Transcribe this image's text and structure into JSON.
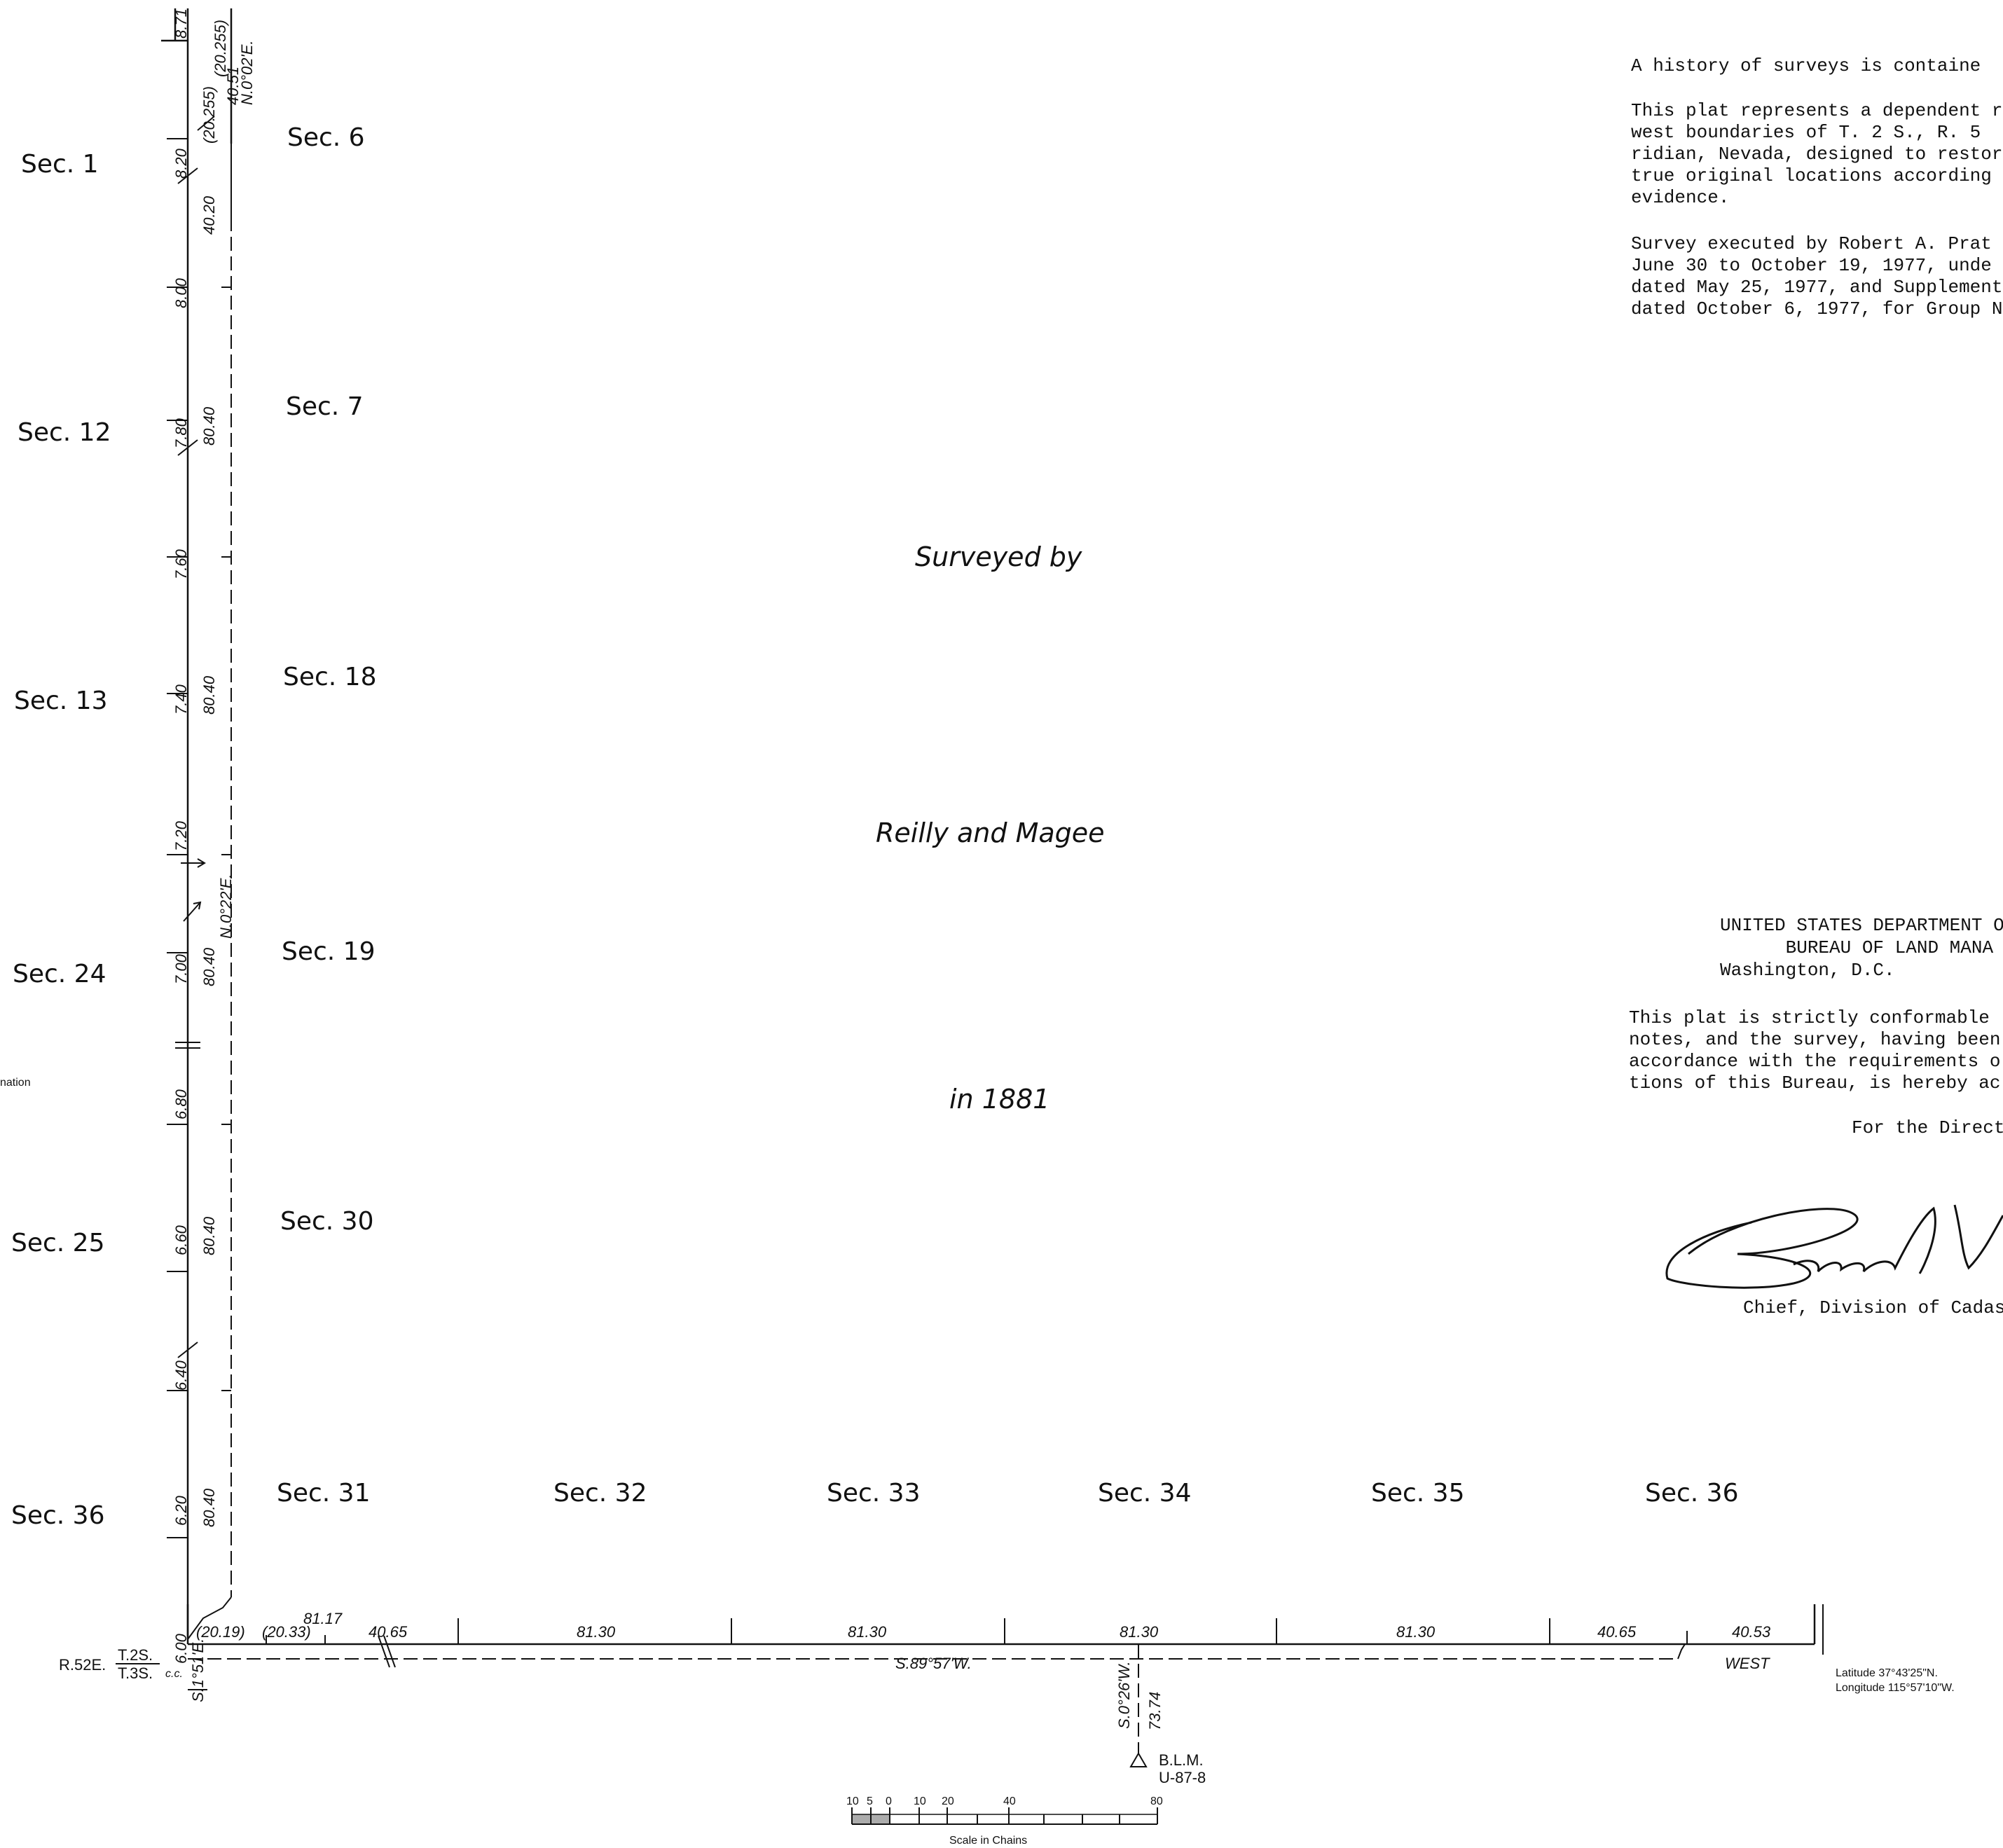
{
  "plat": {
    "history_note": "A history of surveys is containe",
    "dependent_resurvey_lines": [
      "This plat represents a dependent re",
      "west boundaries of T. 2 S., R. 5",
      "ridian, Nevada, designed to restor",
      "true original locations according",
      "evidence."
    ],
    "survey_executed_lines": [
      "Survey executed by Robert A. Prat",
      "June 30 to October 19, 1977, unde",
      "dated May 25, 1977, and Supplementa",
      "dated October 6, 1977, for Group N"
    ],
    "department_lines": [
      "UNITED STATES DEPARTMENT O",
      "      BUREAU OF LAND MANA",
      "Washington, D.C."
    ],
    "conformable_lines": [
      "This plat is strictly conformable",
      "notes, and the survey, having been",
      "accordance with the requirements o",
      "tions of this Bureau, is hereby ac"
    ],
    "for_director": "For the Direct",
    "chief_title": "Chief, Division of Cadas",
    "surveyed_by": "Surveyed  by",
    "surveyors": "Reilly  and  Magee",
    "survey_year": "in  1881",
    "nation_fragment": "nation",
    "latitude": "Latitude  37°43'25\"N.",
    "longitude": "Longitude  115°57'10\"W.",
    "scale_caption": "Scale  in  Chains",
    "scale_ticks": [
      "10",
      "5",
      "0",
      "10",
      "20",
      "40",
      "80"
    ],
    "range_label": "R.52E.",
    "township_upper": "T.2S.",
    "township_lower": "T.3S.",
    "cc_label": "c.c.",
    "monument": [
      "B.L.M.",
      "U-87-8"
    ]
  },
  "sections": {
    "west_column": [
      "Sec.  1",
      "Sec.  12",
      "Sec.  13",
      "Sec.  24",
      "Sec.  25",
      "Sec.  36"
    ],
    "east_column": [
      "Sec.  6",
      "Sec.  7",
      "Sec.  18",
      "Sec.  19",
      "Sec.  30"
    ],
    "bottom_row": [
      "Sec.  31",
      "Sec.  32",
      "Sec.  33",
      "Sec.  34",
      "Sec.  35",
      "Sec.  36"
    ]
  },
  "west_boundary": {
    "offsets": [
      "8.71",
      "8.20",
      "8.00",
      "7.80",
      "7.60",
      "7.40",
      "7.20",
      "7.00",
      "6.80",
      "6.60",
      "6.40",
      "6.20",
      "6.00"
    ],
    "lengths": [
      "40.20",
      "80.40",
      "80.40",
      "80.40",
      "80.40",
      "80.40"
    ],
    "top_labels": [
      "(20.255)",
      "(20.255)",
      "40.51",
      "N.0°02'E."
    ],
    "bearing": "N.0°22'E.",
    "closing_bearing": "S.1°51'E."
  },
  "south_boundary": {
    "top_values": [
      "(20.19)",
      "(20.33)",
      "81.17",
      "40.65",
      "81.30",
      "81.30",
      "81.30",
      "81.30",
      "40.65",
      "40.53"
    ],
    "bearing": "S.89°57'W.",
    "west_label": "WEST",
    "tie_bearing": "S.0°26'W.",
    "tie_length": "73.74"
  }
}
